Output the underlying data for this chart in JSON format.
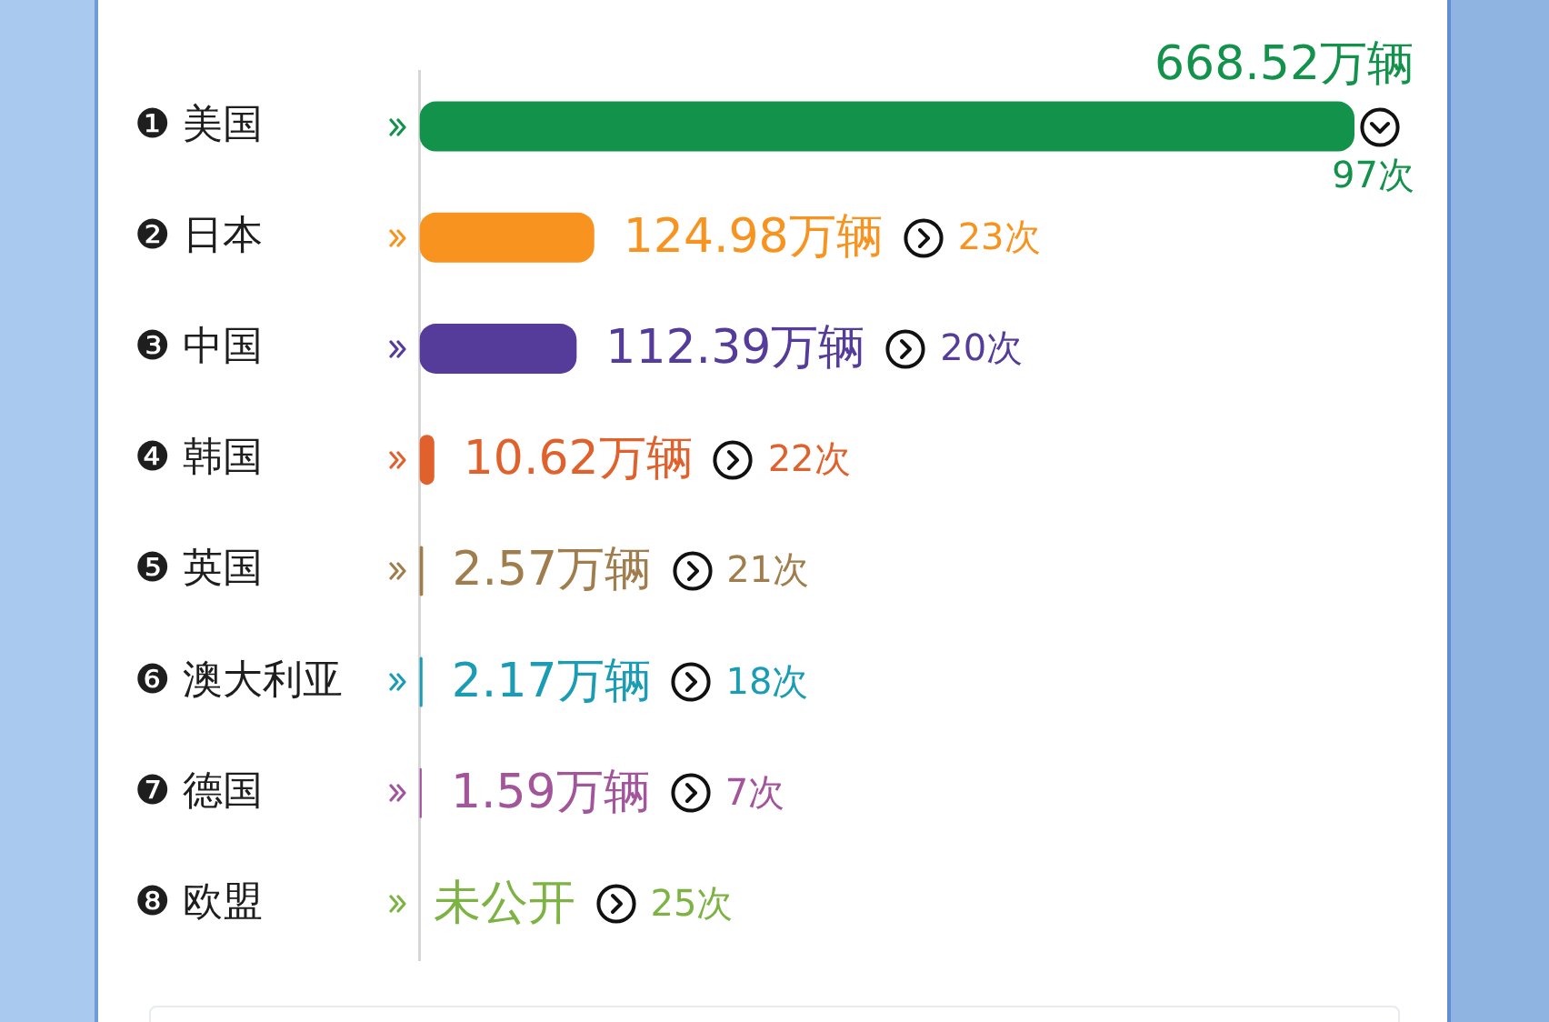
{
  "chart_data": {
    "type": "bar",
    "orientation": "horizontal",
    "tick_labels": "y",
    "categories": [
      "❶ 美国",
      "❷ 日本",
      "❸ 中国",
      "❹ 韩国",
      "❺ 英国",
      "❻ 澳大利亚",
      "❼ 德国",
      "❽ 欧盟"
    ],
    "values": [
      668.52,
      124.98,
      112.39,
      10.62,
      2.57,
      2.17,
      1.59,
      null
    ],
    "colors": [
      "#12924a",
      "#f7931e",
      "#553c9a",
      "#e0612c",
      "#a07d4c",
      "#1a9cb5",
      "#a2559b",
      "#7cb342"
    ],
    "value_labels": [
      "668.52万辆",
      "124.98万辆",
      "112.39万辆",
      "10.62万辆",
      "2.57万辆",
      "2.17万辆",
      "1.59万辆",
      "未公开"
    ],
    "annotations": [
      "97次",
      "23次",
      "20次",
      "22次",
      "21次",
      "18次",
      "7次",
      "25次"
    ]
  }
}
